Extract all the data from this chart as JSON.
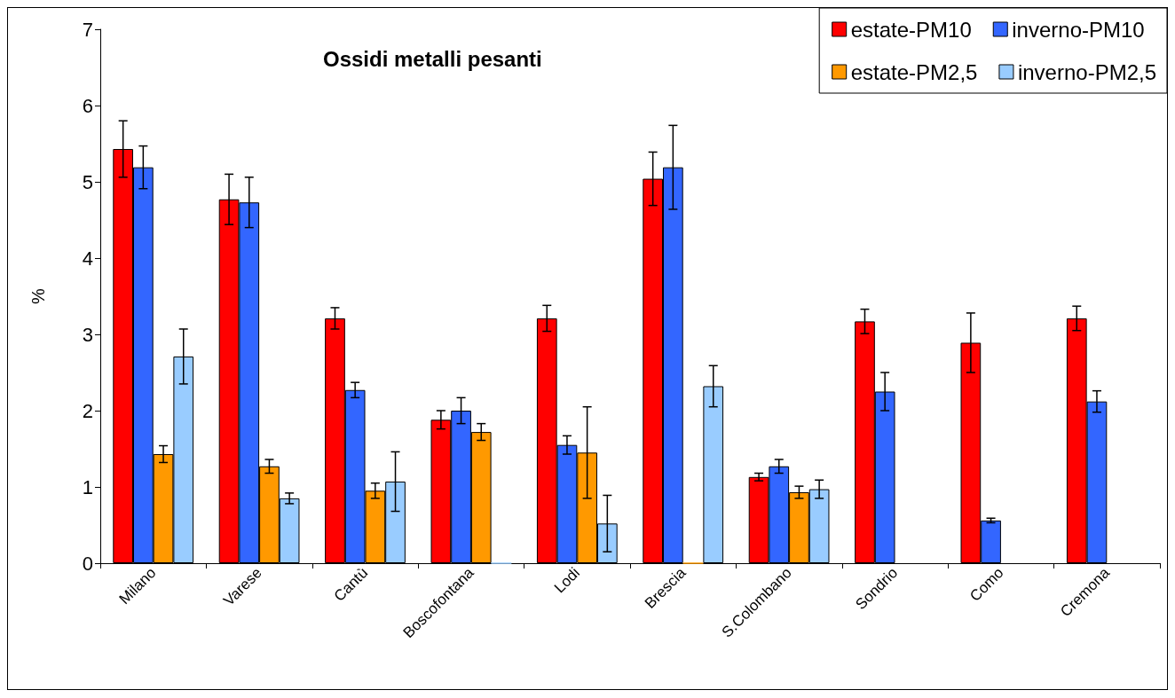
{
  "chart_data": {
    "type": "bar",
    "title": "Ossidi metalli pesanti",
    "ylabel": "%",
    "categories": [
      "Milano",
      "Varese",
      "Cantù",
      "Boscofontana",
      "Lodi",
      "Brescia",
      "S.Colombano",
      "Sondrio",
      "Como",
      "Cremona"
    ],
    "series": [
      {
        "name": "estate-PM10",
        "color": "#ff0000",
        "values": [
          5.43,
          4.77,
          3.21,
          1.88,
          3.21,
          5.04,
          1.13,
          3.17,
          2.89,
          3.21
        ],
        "errors": [
          0.37,
          0.33,
          0.14,
          0.12,
          0.17,
          0.35,
          0.05,
          0.16,
          0.39,
          0.16
        ]
      },
      {
        "name": "inverno-PM10",
        "color": "#3366ff",
        "values": [
          5.19,
          4.73,
          2.27,
          2.0,
          1.55,
          5.19,
          1.27,
          2.25,
          0.56,
          2.12
        ],
        "errors": [
          0.28,
          0.33,
          0.1,
          0.17,
          0.12,
          0.55,
          0.09,
          0.25,
          0.03,
          0.14
        ]
      },
      {
        "name": "estate-PM2,5",
        "color": "#ff9900",
        "values": [
          1.43,
          1.27,
          0.95,
          1.72,
          1.45,
          0,
          0.93,
          null,
          null,
          null
        ],
        "errors": [
          0.11,
          0.09,
          0.1,
          0.11,
          0.6,
          null,
          0.08,
          null,
          null,
          null
        ]
      },
      {
        "name": "inverno-PM2,5",
        "color": "#99ccff",
        "values": [
          2.71,
          0.85,
          1.07,
          0,
          0.52,
          2.32,
          0.97,
          null,
          null,
          null
        ],
        "errors": [
          0.36,
          0.07,
          0.39,
          null,
          0.37,
          0.27,
          0.12,
          null,
          null,
          null
        ]
      }
    ],
    "ylim": [
      0,
      7
    ],
    "yticks": [
      0,
      1,
      2,
      3,
      4,
      5,
      6,
      7
    ],
    "grid": false,
    "legend": "top right"
  }
}
